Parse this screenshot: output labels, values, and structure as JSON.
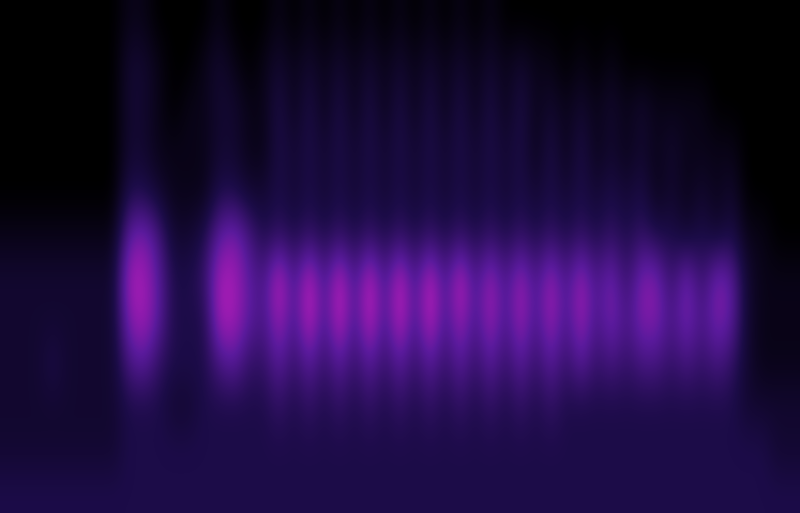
{
  "chart_data": {
    "type": "heatmap",
    "tick_labels": false,
    "clim": [
      0,
      9
    ],
    "cells": [
      [
        0,
        0,
        0,
        0,
        0,
        0,
        0,
        0,
        1,
        1,
        0,
        0,
        0,
        0,
        1,
        0,
        0,
        0,
        1,
        0,
        1,
        0,
        1,
        0,
        1,
        0,
        1,
        0,
        1,
        0,
        1,
        0,
        1,
        0,
        0,
        0,
        0,
        0,
        0,
        0,
        0,
        0,
        0,
        0,
        0,
        0,
        0,
        0,
        0,
        0,
        0,
        0,
        0
      ],
      [
        0,
        0,
        0,
        0,
        0,
        0,
        0,
        0,
        2,
        2,
        1,
        0,
        0,
        1,
        2,
        1,
        0,
        1,
        2,
        1,
        2,
        1,
        2,
        1,
        2,
        1,
        2,
        1,
        2,
        1,
        2,
        1,
        2,
        1,
        2,
        1,
        1,
        0,
        1,
        0,
        1,
        0,
        0,
        0,
        0,
        0,
        0,
        0,
        0,
        0,
        0,
        0,
        0
      ],
      [
        0,
        0,
        0,
        0,
        0,
        0,
        0,
        0,
        2,
        2,
        1,
        0,
        1,
        1,
        2,
        2,
        1,
        1,
        3,
        1,
        3,
        1,
        3,
        1,
        3,
        1,
        3,
        1,
        3,
        1,
        3,
        1,
        3,
        1,
        3,
        1,
        2,
        1,
        2,
        1,
        2,
        1,
        2,
        1,
        1,
        1,
        1,
        0,
        0,
        0,
        0,
        0,
        0
      ],
      [
        0,
        0,
        0,
        0,
        0,
        0,
        0,
        0,
        2,
        2,
        1,
        1,
        1,
        1,
        2,
        2,
        1,
        1,
        3,
        2,
        3,
        2,
        3,
        2,
        3,
        2,
        3,
        2,
        3,
        2,
        3,
        2,
        3,
        2,
        3,
        1,
        3,
        1,
        3,
        1,
        2,
        1,
        2,
        1,
        2,
        1,
        1,
        1,
        1,
        0,
        0,
        0,
        0
      ],
      [
        0,
        0,
        0,
        0,
        0,
        0,
        0,
        0,
        3,
        3,
        2,
        1,
        1,
        1,
        3,
        3,
        2,
        2,
        3,
        2,
        3,
        2,
        3,
        2,
        3,
        2,
        3,
        2,
        3,
        2,
        3,
        2,
        3,
        2,
        3,
        2,
        3,
        2,
        3,
        2,
        3,
        2,
        3,
        1,
        2,
        1,
        2,
        1,
        2,
        0,
        0,
        0,
        0
      ],
      [
        1,
        1,
        1,
        1,
        1,
        1,
        1,
        1,
        6,
        7,
        5,
        2,
        2,
        3,
        6,
        7,
        5,
        3,
        4,
        3,
        4,
        3,
        4,
        3,
        4,
        3,
        4,
        3,
        4,
        3,
        4,
        3,
        4,
        3,
        4,
        3,
        4,
        3,
        4,
        3,
        4,
        3,
        4,
        3,
        3,
        2,
        3,
        2,
        3,
        1,
        1,
        0,
        0
      ],
      [
        2,
        2,
        2,
        2,
        2,
        2,
        2,
        2,
        8,
        8,
        6,
        3,
        3,
        4,
        8,
        8,
        6,
        5,
        9,
        5,
        9,
        5,
        9,
        5,
        9,
        5,
        9,
        5,
        9,
        5,
        9,
        5,
        8,
        5,
        8,
        5,
        8,
        5,
        8,
        5,
        7,
        4,
        7,
        7,
        4,
        7,
        4,
        7,
        6,
        2,
        1,
        1,
        1
      ],
      [
        2,
        2,
        2,
        2,
        2,
        2,
        2,
        2,
        7,
        8,
        6,
        3,
        3,
        3,
        8,
        8,
        6,
        5,
        8,
        5,
        9,
        5,
        9,
        5,
        9,
        5,
        9,
        5,
        9,
        5,
        8,
        5,
        8,
        5,
        8,
        5,
        8,
        5,
        8,
        5,
        7,
        5,
        7,
        7,
        5,
        7,
        5,
        7,
        6,
        2,
        1,
        1,
        1
      ],
      [
        2,
        2,
        2,
        3,
        2,
        2,
        2,
        2,
        5,
        6,
        4,
        3,
        3,
        3,
        5,
        6,
        4,
        4,
        6,
        4,
        6,
        4,
        6,
        4,
        6,
        4,
        6,
        4,
        6,
        4,
        6,
        4,
        6,
        4,
        6,
        4,
        6,
        4,
        6,
        4,
        5,
        4,
        5,
        5,
        4,
        5,
        4,
        5,
        4,
        2,
        1,
        1,
        1
      ],
      [
        2,
        2,
        2,
        2,
        2,
        2,
        2,
        2,
        3,
        3,
        3,
        2,
        2,
        3,
        3,
        3,
        3,
        3,
        4,
        3,
        4,
        3,
        4,
        3,
        4,
        3,
        4,
        3,
        4,
        3,
        4,
        3,
        4,
        3,
        4,
        3,
        4,
        3,
        3,
        3,
        3,
        3,
        3,
        3,
        3,
        3,
        3,
        3,
        3,
        2,
        2,
        2,
        2
      ],
      [
        2,
        2,
        2,
        2,
        2,
        2,
        2,
        2,
        3,
        3,
        3,
        3,
        3,
        3,
        3,
        3,
        3,
        3,
        3,
        3,
        3,
        3,
        3,
        3,
        3,
        3,
        3,
        3,
        3,
        3,
        3,
        3,
        3,
        3,
        3,
        3,
        3,
        3,
        3,
        3,
        3,
        3,
        3,
        3,
        3,
        3,
        3,
        3,
        3,
        3,
        3,
        2,
        2
      ],
      [
        3,
        3,
        3,
        3,
        3,
        3,
        3,
        3,
        3,
        3,
        3,
        3,
        3,
        3,
        3,
        3,
        3,
        3,
        3,
        3,
        3,
        3,
        3,
        3,
        3,
        3,
        3,
        3,
        3,
        3,
        3,
        3,
        3,
        3,
        3,
        3,
        3,
        3,
        3,
        3,
        3,
        3,
        3,
        3,
        3,
        3,
        3,
        3,
        3,
        3,
        3,
        3,
        3
      ]
    ]
  }
}
